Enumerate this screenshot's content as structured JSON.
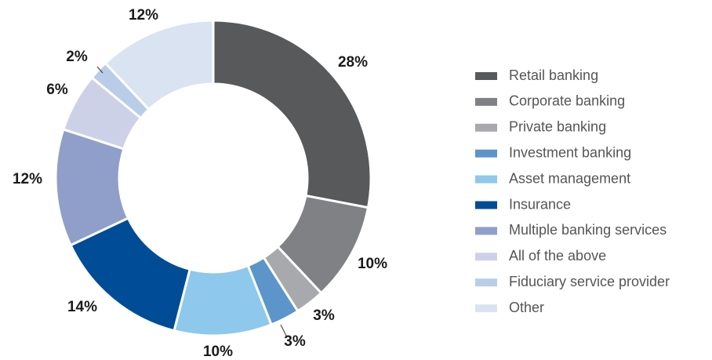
{
  "chart_data": {
    "type": "donut",
    "categories": [
      "Retail banking",
      "Corporate banking",
      "Private banking",
      "Investment banking",
      "Asset management",
      "Insurance",
      "Multiple banking services",
      "All of the above",
      "Fiduciary service provider",
      "Other"
    ],
    "values": [
      28,
      10,
      3,
      3,
      10,
      14,
      12,
      6,
      2,
      12
    ],
    "value_labels": [
      "28%",
      "10%",
      "3%",
      "3%",
      "10%",
      "14%",
      "12%",
      "6%",
      "2%",
      "12%"
    ],
    "colors": [
      "#58595b",
      "#808184",
      "#a7a9ac",
      "#5b95c9",
      "#8ec8ec",
      "#004c97",
      "#8f9fc9",
      "#cdd1e8",
      "#b9cde9",
      "#d9e3f1"
    ],
    "legend": "right"
  }
}
